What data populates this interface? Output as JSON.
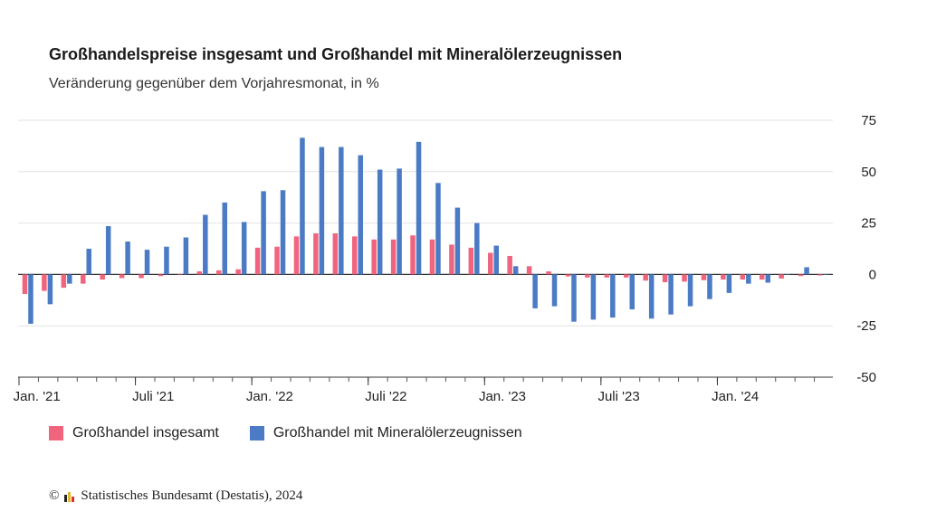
{
  "header": {
    "title": "Großhandelspreise insgesamt und Großhandel mit Mineralölerzeugnissen",
    "subtitle": "Veränderung gegenüber dem Vorjahresmonat, in %"
  },
  "legend": {
    "items": [
      {
        "label": "Großhandel insgesamt",
        "color": "#f0657d"
      },
      {
        "label": "Großhandel mit Mineralölerzeugnissen",
        "color": "#4a7bc4"
      }
    ]
  },
  "source": {
    "copyright": "©",
    "text": "Statistisches Bundesamt (Destatis), 2024",
    "logo_colors": [
      "#222222",
      "#e3b52a",
      "#d9342b"
    ]
  },
  "chart_data": {
    "type": "bar",
    "categories": [
      "2021-01",
      "2021-02",
      "2021-03",
      "2021-04",
      "2021-05",
      "2021-06",
      "2021-07",
      "2021-08",
      "2021-09",
      "2021-10",
      "2021-11",
      "2021-12",
      "2022-01",
      "2022-02",
      "2022-03",
      "2022-04",
      "2022-05",
      "2022-06",
      "2022-07",
      "2022-08",
      "2022-09",
      "2022-10",
      "2022-11",
      "2022-12",
      "2023-01",
      "2023-02",
      "2023-03",
      "2023-04",
      "2023-05",
      "2023-06",
      "2023-07",
      "2023-08",
      "2023-09",
      "2023-10",
      "2023-11",
      "2023-12",
      "2024-01",
      "2024-02",
      "2024-03",
      "2024-04",
      "2024-05",
      "2024-06"
    ],
    "tick_labels": [
      {
        "index": 0,
        "label": "Jan. '21"
      },
      {
        "index": 6,
        "label": "Juli '21"
      },
      {
        "index": 12,
        "label": "Jan. '22"
      },
      {
        "index": 18,
        "label": "Juli '22"
      },
      {
        "index": 24,
        "label": "Jan. '23"
      },
      {
        "index": 30,
        "label": "Juli '23"
      },
      {
        "index": 36,
        "label": "Jan. '24"
      }
    ],
    "series": [
      {
        "name": "Großhandel insgesamt",
        "color": "#f0657d",
        "values": [
          -9.5,
          -8,
          -6.5,
          -4.5,
          -2.5,
          -1.8,
          -1.8,
          -0.8,
          0.2,
          1.5,
          2,
          2.5,
          13,
          13.5,
          18.5,
          20,
          20,
          18.5,
          17,
          17,
          19,
          17,
          14.5,
          13,
          10.5,
          9,
          4,
          1.5,
          -1,
          -1.5,
          -1.5,
          -1.5,
          -3,
          -3.8,
          -3.5,
          -2.8,
          -2.5,
          -2.5,
          -2.5,
          -2,
          -0.8,
          -0.5
        ]
      },
      {
        "name": "Großhandel mit Mineralölerzeugnissen",
        "color": "#4a7bc4",
        "values": [
          -24,
          -14.5,
          -4.5,
          12.5,
          23.5,
          16,
          12,
          13.5,
          18,
          29,
          35,
          25.5,
          40.5,
          41,
          66.5,
          62,
          62,
          58,
          51,
          51.5,
          64.5,
          44.5,
          32.5,
          25,
          14,
          4,
          -16.5,
          -15.5,
          -23,
          -22,
          -21,
          -17,
          -21.5,
          -19.5,
          -15.5,
          -12,
          -9,
          -4.5,
          -4,
          0,
          3.5,
          0
        ]
      }
    ],
    "y_ticks": [
      75,
      50,
      25,
      0,
      -25,
      -50
    ],
    "y_tick_labels": [
      "75",
      "50",
      "25",
      "0",
      "-25",
      "-50"
    ],
    "ylim": [
      -50,
      75
    ],
    "grid": true,
    "legend_position": "bottom-left"
  }
}
